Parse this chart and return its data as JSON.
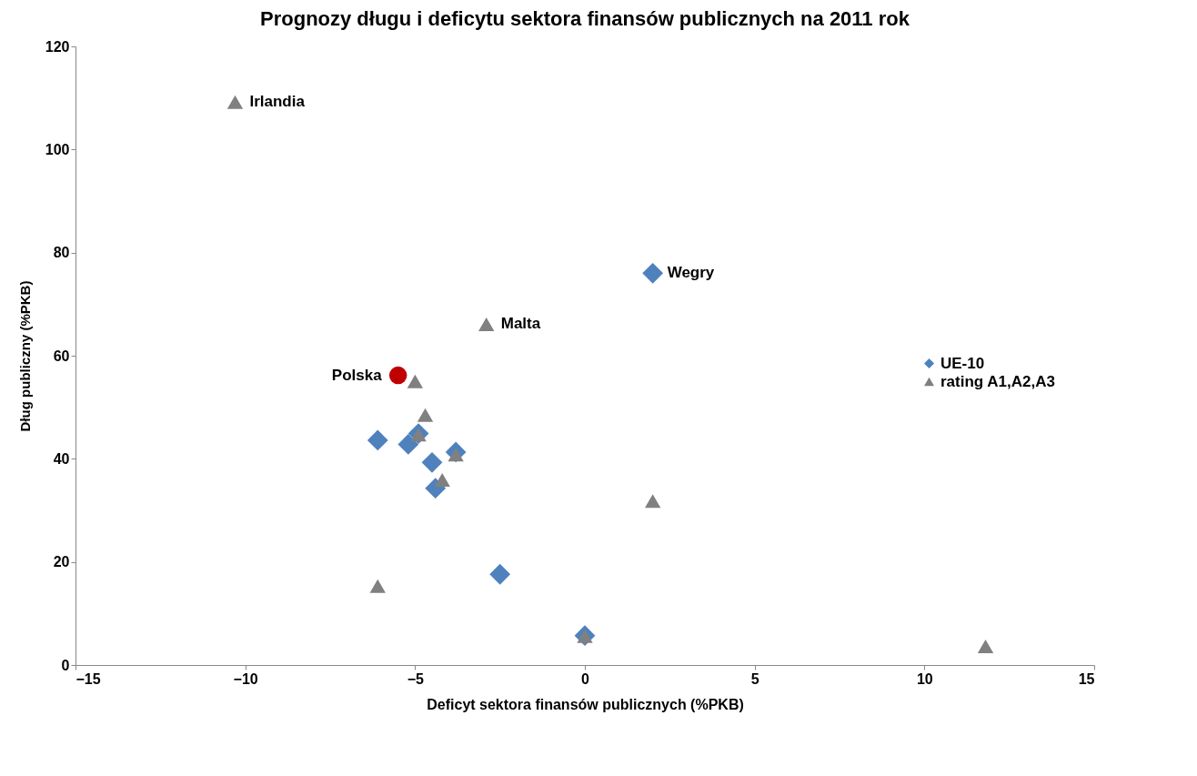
{
  "chart_data": {
    "type": "scatter",
    "title": "Prognozy długu i deficytu sektora finansów publicznych na 2011 rok",
    "xlabel": "Deficyt sektora finansów publicznych (%PKB)",
    "ylabel": "Dług publiczny (%PKB)",
    "xlim": [
      -15,
      15
    ],
    "xticks": [
      -15,
      -10,
      -5,
      0,
      5,
      10,
      15
    ],
    "ylim": [
      0,
      120
    ],
    "yticks": [
      0,
      20,
      40,
      60,
      80,
      100,
      120
    ],
    "grid": false,
    "legend": "right",
    "series": [
      {
        "name": "UE-10",
        "color": "#4f81bd",
        "marker": "diamond",
        "x": [
          2.0,
          -6.1,
          -5.2,
          -4.9,
          -4.5,
          -3.8,
          -4.4,
          -2.5,
          0.0
        ],
        "values": [
          76,
          43.6,
          42.8,
          44.9,
          39.3,
          41.3,
          34.3,
          17.6,
          5.7
        ]
      },
      {
        "name": "rating A1,A2,A3",
        "color": "#808080",
        "marker": "triangle",
        "x": [
          -10.3,
          -2.9,
          -5.0,
          -4.7,
          -4.9,
          -3.8,
          -4.2,
          2.0,
          -6.1,
          0.0,
          11.8
        ],
        "values": [
          109.2,
          66.1,
          55.0,
          48.5,
          44.7,
          40.8,
          35.9,
          31.8,
          15.3,
          5.6,
          3.6
        ]
      },
      {
        "color": "#c00000",
        "marker": "circle",
        "x": [
          -5.5
        ],
        "values": [
          56.2
        ]
      }
    ],
    "annotations": [
      {
        "text": "Irlandia",
        "x": -10.3,
        "y": 109.2
      },
      {
        "text": "Malta",
        "x": -2.9,
        "y": 66.1
      },
      {
        "text": "Wegry",
        "x": 2.0,
        "y": 76
      },
      {
        "text": "Polska",
        "x": -5.5,
        "y": 56.2
      }
    ]
  }
}
